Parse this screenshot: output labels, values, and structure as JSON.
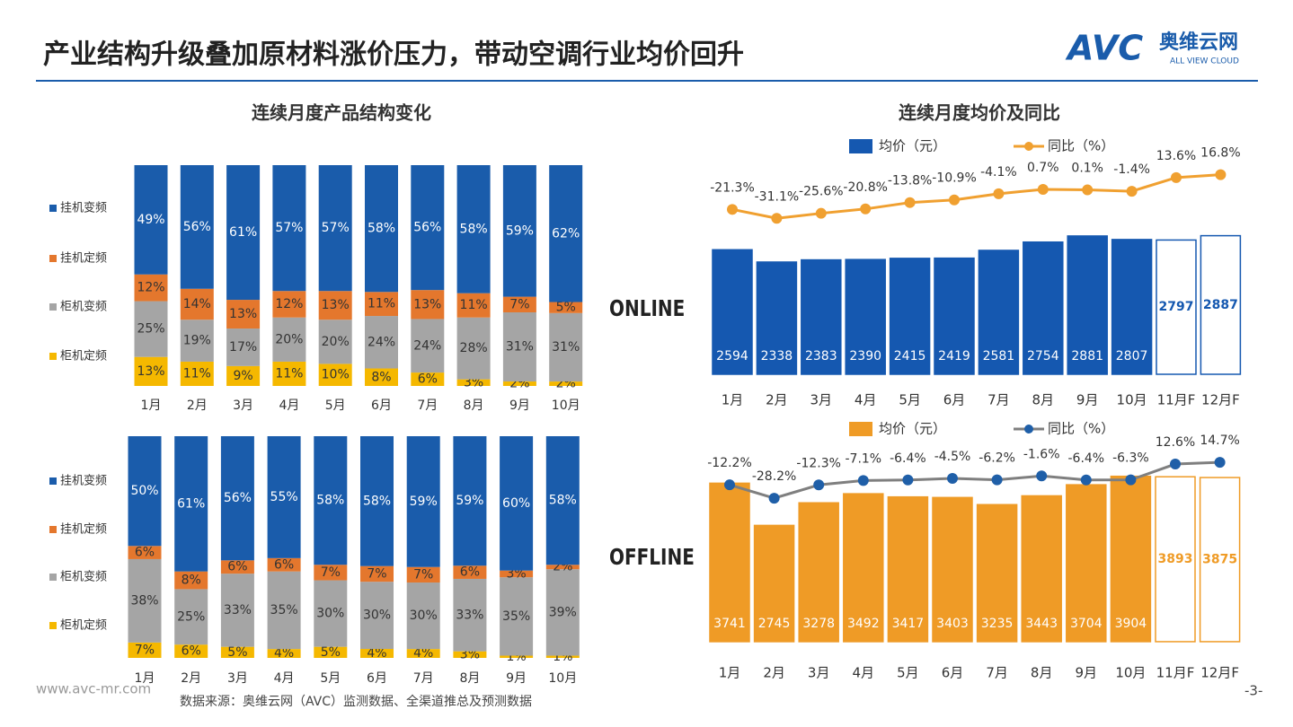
{
  "header": {
    "title": "产业结构升级叠加原材料涨价压力，带动空调行业均价回升",
    "logo": {
      "mark": "AVC",
      "name": "奥维云网",
      "tagline": "ALL VIEW CLOUD"
    }
  },
  "footer": {
    "website": "www.avc-mr.com",
    "source": "数据来源：奥维云网（AVC）监测数据、全渠道推总及预测数据",
    "page": "-3-"
  },
  "chart_data": [
    {
      "type": "stacked_bar",
      "title": "连续月度产品结构变化",
      "categories": [
        "1月",
        "2月",
        "3月",
        "4月",
        "5月",
        "6月",
        "7月",
        "8月",
        "9月",
        "10月"
      ],
      "series": [
        {
          "name": "挂机变频",
          "color": "#1a5cab",
          "values": [
            49,
            56,
            61,
            57,
            57,
            58,
            56,
            58,
            59,
            62
          ],
          "value_labels": [
            "49%",
            "56%",
            "61%",
            "57%",
            "57%",
            "58%",
            "56%",
            "58%",
            "59%",
            "62%"
          ]
        },
        {
          "name": "挂机定频",
          "color": "#e4772d",
          "values": [
            12,
            14,
            13,
            12,
            13,
            11,
            13,
            11,
            7,
            5
          ],
          "value_labels": [
            "12%",
            "14%",
            "13%",
            "12%",
            "13%",
            "11%",
            "13%",
            "11%",
            "7%",
            "5%"
          ]
        },
        {
          "name": "柜机变频",
          "color": "#a5a5a5",
          "values": [
            25,
            19,
            17,
            20,
            20,
            24,
            24,
            28,
            31,
            31
          ],
          "value_labels": [
            "25%",
            "19%",
            "17%",
            "20%",
            "20%",
            "24%",
            "24%",
            "28%",
            "31%",
            "31%"
          ]
        },
        {
          "name": "柜机定频",
          "color": "#f5b800",
          "values": [
            13,
            11,
            9,
            11,
            10,
            8,
            6,
            3,
            2,
            2
          ],
          "value_labels": [
            "13%",
            "11%",
            "9%",
            "11%",
            "10%",
            "8%",
            "6%",
            "3%",
            "2%",
            "2%"
          ]
        }
      ]
    },
    {
      "type": "stacked_bar",
      "categories": [
        "1月",
        "2月",
        "3月",
        "4月",
        "5月",
        "6月",
        "7月",
        "8月",
        "9月",
        "10月"
      ],
      "series": [
        {
          "name": "挂机变频",
          "color": "#1a5cab",
          "values": [
            50,
            61,
            56,
            55,
            58,
            58,
            59,
            59,
            60,
            58
          ],
          "value_labels": [
            "50%",
            "61%",
            "56%",
            "55%",
            "58%",
            "58%",
            "59%",
            "59%",
            "60%",
            "58%"
          ]
        },
        {
          "name": "挂机定频",
          "color": "#e4772d",
          "values": [
            6,
            8,
            6,
            6,
            7,
            7,
            7,
            6,
            3,
            2
          ],
          "value_labels": [
            "6%",
            "8%",
            "6%",
            "6%",
            "7%",
            "7%",
            "7%",
            "6%",
            "3%",
            "2%"
          ]
        },
        {
          "name": "柜机变频",
          "color": "#a5a5a5",
          "values": [
            38,
            25,
            33,
            35,
            30,
            30,
            30,
            33,
            35,
            39
          ],
          "value_labels": [
            "38%",
            "25%",
            "33%",
            "35%",
            "30%",
            "30%",
            "30%",
            "33%",
            "35%",
            "39%"
          ]
        },
        {
          "name": "柜机定频",
          "color": "#f5b800",
          "values": [
            7,
            6,
            5,
            4,
            5,
            4,
            4,
            3,
            1,
            1
          ],
          "value_labels": [
            "7%",
            "6%",
            "5%",
            "4%",
            "5%",
            "4%",
            "4%",
            "3%",
            "1%",
            "1%"
          ]
        }
      ]
    },
    {
      "type": "bar_line",
      "title": "连续月度均价及同比",
      "annotation": "ONLINE",
      "categories": [
        "1月",
        "2月",
        "3月",
        "4月",
        "5月",
        "6月",
        "7月",
        "8月",
        "9月",
        "10月",
        "11月F",
        "12月F"
      ],
      "ylim": [
        0,
        4600
      ],
      "y2lim": [
        -202,
        40
      ],
      "series": [
        {
          "name": "均价（元）",
          "type": "bar",
          "color": "#1558b0",
          "bar_fills": [
            "#1558b0",
            "#1558b0",
            "#1558b0",
            "#1558b0",
            "#1558b0",
            "#1558b0",
            "#1558b0",
            "#1558b0",
            "#1558b0",
            "#1558b0",
            "#ffffff",
            "#ffffff"
          ],
          "values": [
            2594,
            2338,
            2383,
            2390,
            2415,
            2419,
            2581,
            2754,
            2881,
            2807,
            2797,
            2887
          ]
        },
        {
          "name": "同比（%）",
          "type": "line",
          "axis": "y2",
          "color": "#f0a030",
          "marker_color": "#f0a030",
          "values": [
            -21.3,
            -31.1,
            -25.6,
            -20.8,
            -13.8,
            -10.9,
            -4.1,
            0.7,
            0.1,
            -1.4,
            13.6,
            16.8
          ],
          "value_labels": [
            "-21.3%",
            "-31.1%",
            "-25.6%",
            "-20.8%",
            "-13.8%",
            "-10.9%",
            "-4.1%",
            "0.7%",
            "0.1%",
            "-1.4%",
            "13.6%",
            "16.8%"
          ]
        }
      ]
    },
    {
      "type": "bar_line",
      "annotation": "OFFLINE",
      "categories": [
        "1月",
        "2月",
        "3月",
        "4月",
        "5月",
        "6月",
        "7月",
        "8月",
        "9月",
        "10月",
        "11月F",
        "12月F"
      ],
      "ylim": [
        -150,
        5190
      ],
      "y2lim": [
        -207,
        63
      ],
      "series": [
        {
          "name": "均价（元）",
          "type": "bar",
          "color": "#ef9b26",
          "bar_fills": [
            "#ef9b26",
            "#ef9b26",
            "#ef9b26",
            "#ef9b26",
            "#ef9b26",
            "#ef9b26",
            "#ef9b26",
            "#ef9b26",
            "#ef9b26",
            "#ef9b26",
            "#ffffff",
            "#ffffff"
          ],
          "values": [
            3741,
            2745,
            3278,
            3492,
            3417,
            3403,
            3235,
            3443,
            3704,
            3904,
            3893,
            3875
          ]
        },
        {
          "name": "同比（%）",
          "type": "line",
          "axis": "y2",
          "color": "#7f7f7f",
          "marker_color": "#1f5fa8",
          "values": [
            -12.2,
            -28.2,
            -12.3,
            -7.1,
            -6.4,
            -4.5,
            -6.2,
            -1.6,
            -6.4,
            -6.3,
            12.6,
            14.7
          ],
          "value_labels": [
            "-12.2%",
            "-28.2%",
            "-12.3%",
            "-7.1%",
            "-6.4%",
            "-4.5%",
            "-6.2%",
            "-1.6%",
            "-6.4%",
            "-6.3%",
            "12.6%",
            "14.7%"
          ]
        }
      ]
    }
  ]
}
